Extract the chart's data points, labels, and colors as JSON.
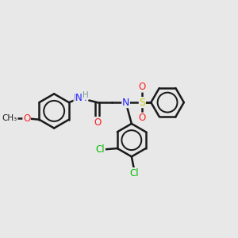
{
  "background_color": "#e8e8e8",
  "bond_color": "#1a1a1a",
  "bond_width": 1.8,
  "atom_colors": {
    "N": "#2020ff",
    "H": "#7a9a9a",
    "O": "#ff2020",
    "S": "#cccc00",
    "Cl": "#00bb00",
    "C": "#1a1a1a"
  },
  "figsize": [
    3.0,
    3.0
  ],
  "dpi": 100,
  "xlim": [
    0,
    10
  ],
  "ylim": [
    0,
    10
  ]
}
